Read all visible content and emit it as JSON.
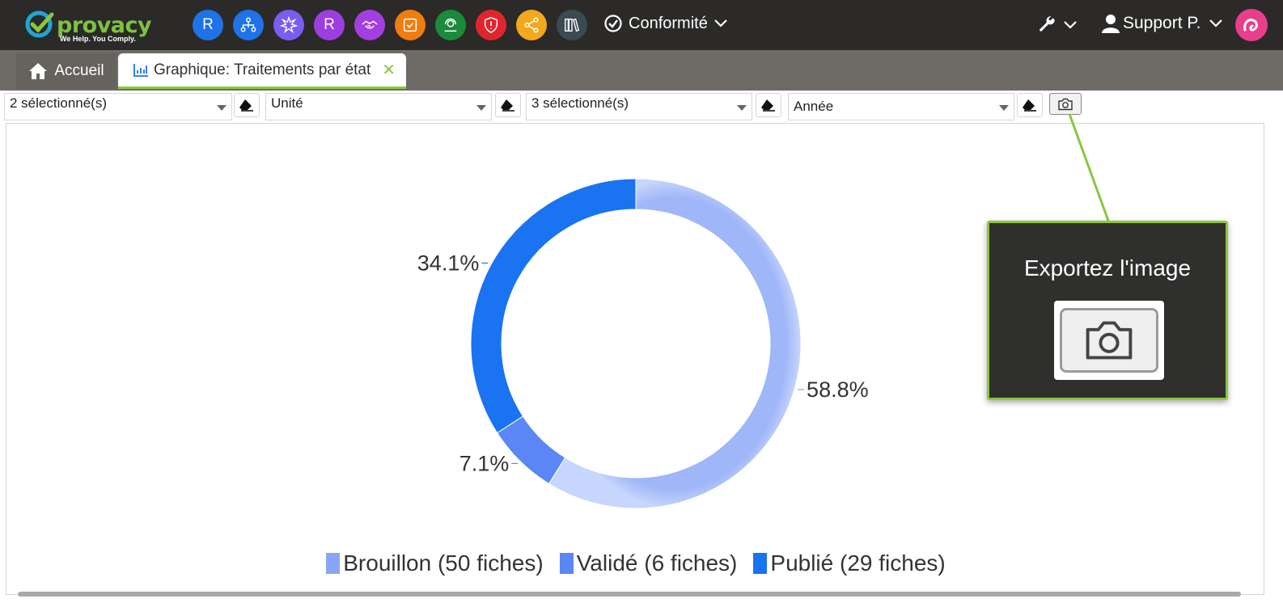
{
  "app": {
    "logo_word": "provacy",
    "logo_tagline": "We Help. You Comply."
  },
  "modules": [
    {
      "icon": "letter-r-icon",
      "label": "R",
      "color": "#1e73e8"
    },
    {
      "icon": "network-icon",
      "label": "",
      "color": "#1e73e8"
    },
    {
      "icon": "burst-icon",
      "label": "",
      "color": "#7b5cf0"
    },
    {
      "icon": "letter-r-icon",
      "label": "R",
      "color": "#9b3fe0"
    },
    {
      "icon": "handshake-icon",
      "label": "",
      "color": "#a33fe0"
    },
    {
      "icon": "checkbox-icon",
      "label": "",
      "color": "#f07d0f"
    },
    {
      "icon": "support-agent-icon",
      "label": "",
      "color": "#1b8a3a"
    },
    {
      "icon": "shield-alert-icon",
      "label": "",
      "color": "#e0262c"
    },
    {
      "icon": "share-icon",
      "label": "",
      "color": "#f3a91d"
    },
    {
      "icon": "library-icon",
      "label": "",
      "color": "#3c4a52"
    }
  ],
  "topnav": {
    "conformite_label": "Conformité",
    "user_label": "Support P."
  },
  "tabs": {
    "home_label": "Accueil",
    "active_label": "Graphique: Traitements par état"
  },
  "filters": {
    "filter1_value": "2 sélectionné(s)",
    "filter2_value": "Unité",
    "filter3_value": "3 sélectionné(s)",
    "filter4_value": "Année"
  },
  "tooltip": {
    "title": "Exportez l'image"
  },
  "colors": {
    "accent_green": "#8cc63f",
    "brouillon": "#89a5f7",
    "valide": "#5b86f5",
    "publie": "#1a73f0"
  },
  "chart_data": {
    "type": "pie",
    "donut": true,
    "series": [
      {
        "name": "Brouillon (50 fiches)",
        "value": 50,
        "percent_label": "58.8%",
        "color": "#89a5f7"
      },
      {
        "name": "Validé (6 fiches)",
        "value": 6,
        "percent_label": "7.1%",
        "color": "#5b86f5"
      },
      {
        "name": "Publié (29 fiches)",
        "value": 29,
        "percent_label": "34.1%",
        "color": "#1a73f0"
      }
    ],
    "legend_position": "bottom"
  }
}
